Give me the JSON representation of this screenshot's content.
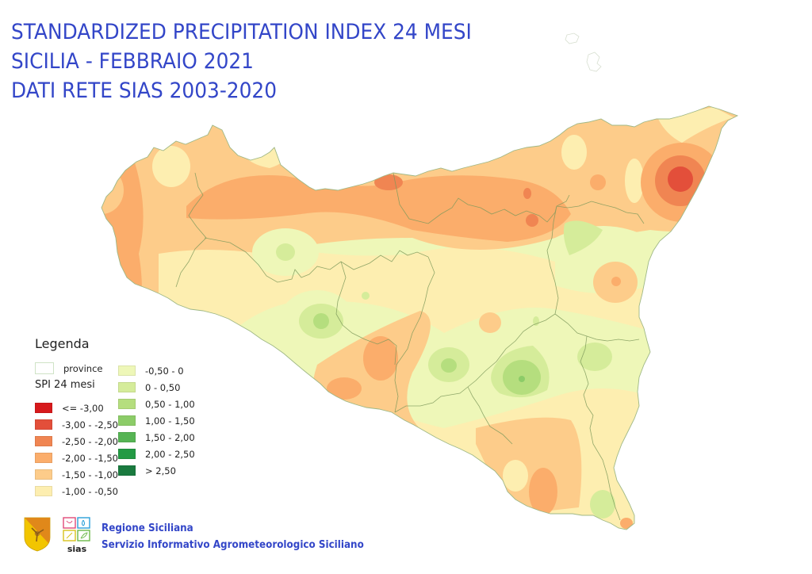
{
  "title": {
    "lines": [
      "STANDARDIZED PRECIPITATION INDEX 24 MESI",
      "SICILIA - FEBBRAIO 2021",
      "DATI RETE SIAS 2003-2020"
    ],
    "color": "#3346c8"
  },
  "map": {
    "region": "Sicilia",
    "variable": "SPI 24 mesi",
    "period": "Febbraio 2021",
    "reference_period": "2003-2020"
  },
  "legend": {
    "title": "Legenda",
    "province_label": "province",
    "subtitle": "SPI 24 mesi",
    "classes": [
      {
        "label": "<= -3,00",
        "color": "#d7191c"
      },
      {
        "label": "-3,00 - -2,50",
        "color": "#e34f3a"
      },
      {
        "label": "-2,50 - -2,00",
        "color": "#f08552"
      },
      {
        "label": "-2,00 - -1,50",
        "color": "#fbad6b"
      },
      {
        "label": "-1,50 - -1,00",
        "color": "#fdcc8a"
      },
      {
        "label": "-1,00 - -0,50",
        "color": "#fdeeb0"
      },
      {
        "label": "-0,50 - 0",
        "color": "#eef7b8"
      },
      {
        "label": "0 - 0,50",
        "color": "#d5ec9a"
      },
      {
        "label": "0,50 - 1,00",
        "color": "#b5de7e"
      },
      {
        "label": "1,00 - 1,50",
        "color": "#8ccc68"
      },
      {
        "label": "1,50 - 2,00",
        "color": "#56b454"
      },
      {
        "label": "2,00 - 2,50",
        "color": "#239a44"
      },
      {
        "label": "> 2,50",
        "color": "#1a7a3f"
      }
    ]
  },
  "footer": {
    "org_name": "Regione Siciliana",
    "service_name": "Servizio Informativo Agrometeorologico Siciliano",
    "sias_logo_text": "sias",
    "color": "#3346c8"
  }
}
